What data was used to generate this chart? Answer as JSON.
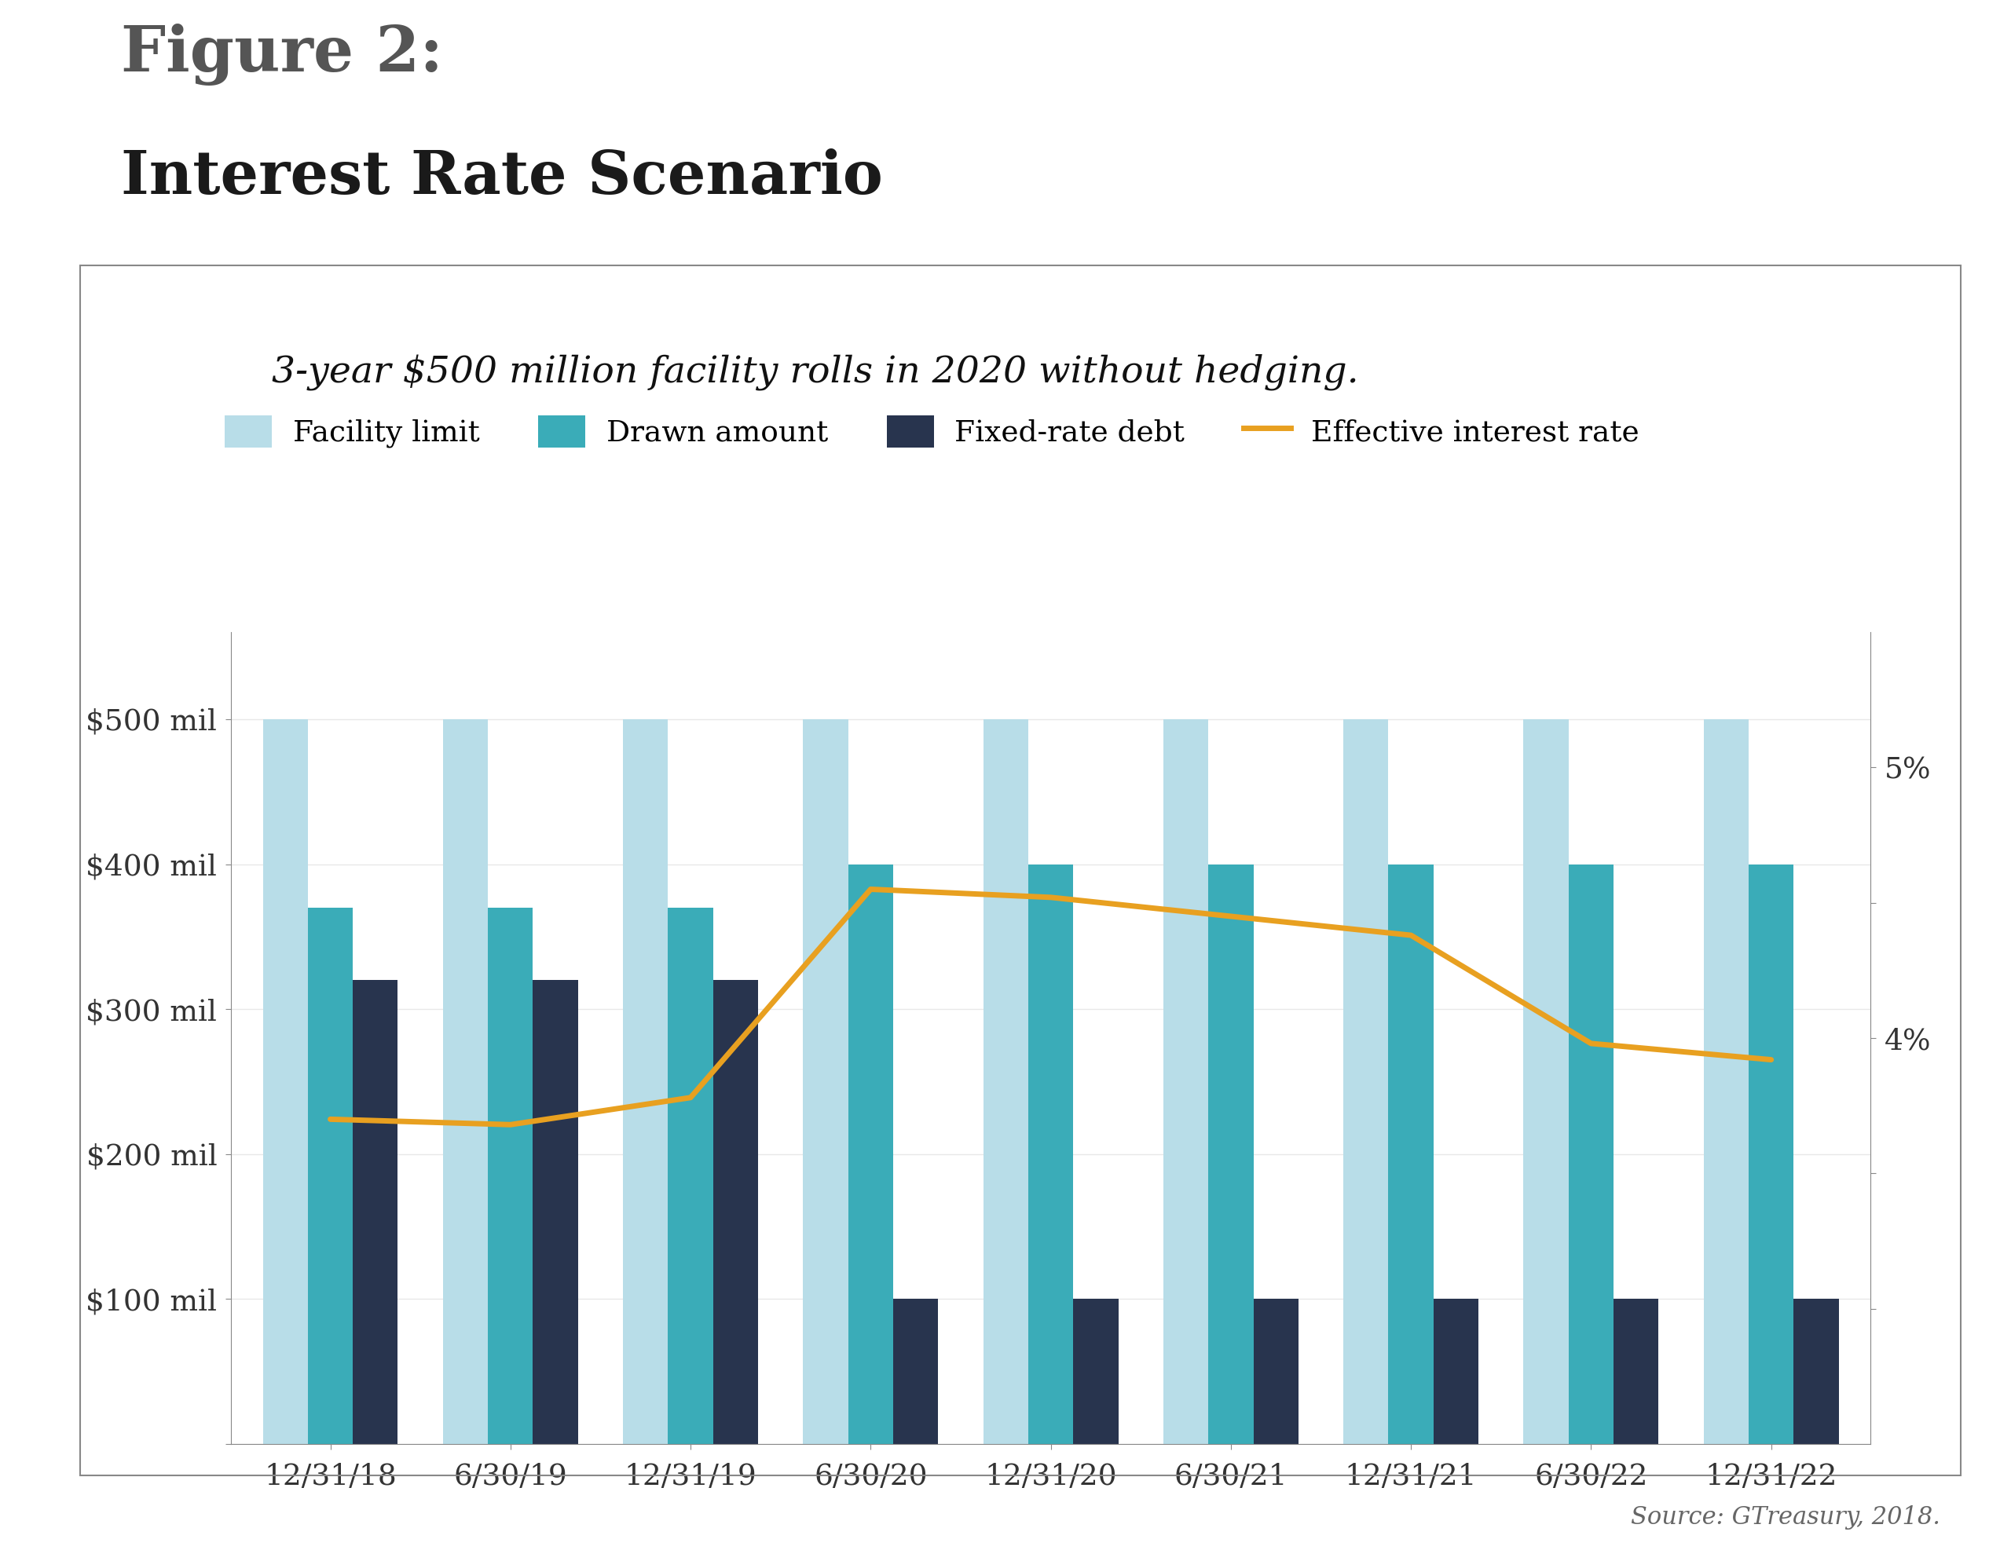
{
  "title_line1": "Figure 2:",
  "title_line2": "Interest Rate Scenario",
  "subtitle": "3-year $500 million facility rolls in 2020 without hedging.",
  "source": "Source: GTreasury, 2018.",
  "categories": [
    "12/31/18",
    "6/30/19",
    "12/31/19",
    "6/30/20",
    "12/31/20",
    "6/30/21",
    "12/31/21",
    "6/30/22",
    "12/31/22"
  ],
  "facility_limit": [
    500,
    500,
    500,
    500,
    500,
    500,
    500,
    500,
    500
  ],
  "drawn_amount": [
    370,
    370,
    370,
    400,
    400,
    400,
    400,
    400,
    400
  ],
  "fixed_rate_debt": [
    320,
    320,
    320,
    100,
    100,
    100,
    100,
    100,
    100
  ],
  "effective_rate": [
    3.7,
    3.68,
    3.78,
    4.55,
    4.52,
    4.45,
    4.38,
    3.98,
    3.92
  ],
  "color_facility": "#b8dde8",
  "color_drawn": "#3aacb8",
  "color_fixed": "#28344e",
  "color_rate": "#e8a020",
  "ylim_left": [
    0,
    560
  ],
  "ylim_right": [
    2.5,
    5.5
  ],
  "yticks_left": [
    0,
    100,
    200,
    300,
    400,
    500
  ],
  "ytick_labels_left": [
    "",
    "$100 mil",
    "$200 mil",
    "$300 mil",
    "$400 mil",
    "$500 mil"
  ],
  "yticks_right": [
    3.0,
    3.5,
    4.0,
    4.5,
    5.0
  ],
  "ytick_labels_right": [
    "",
    "",
    "4%",
    "",
    "5%"
  ],
  "legend_items": [
    "Facility limit",
    "Drawn amount",
    "Fixed-rate debt",
    "Effective interest rate"
  ],
  "bar_width": 0.25,
  "figure_bg": "#ffffff",
  "title_color": "#555555",
  "text_color": "#333333",
  "border_color": "#888888"
}
